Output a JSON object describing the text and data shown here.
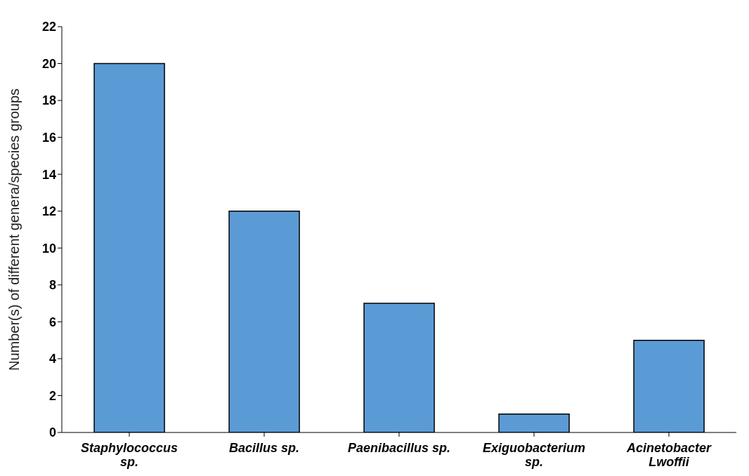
{
  "chart_data": {
    "type": "bar",
    "ylabel": "Number(s) of different genera/species groups",
    "categories": [
      "Staphylococcus sp.",
      "Bacillus sp.",
      "Paenibacillus sp.",
      "Exiguobacterium sp.",
      "Acinetobacter Lwoffii"
    ],
    "values": [
      20,
      12,
      7,
      1,
      5
    ],
    "color": "#5b9bd5",
    "ylim": [
      0,
      22
    ],
    "yticks": [
      0,
      2,
      4,
      6,
      8,
      10,
      12,
      14,
      16,
      18,
      20,
      22
    ],
    "grid": false,
    "legend": false
  }
}
